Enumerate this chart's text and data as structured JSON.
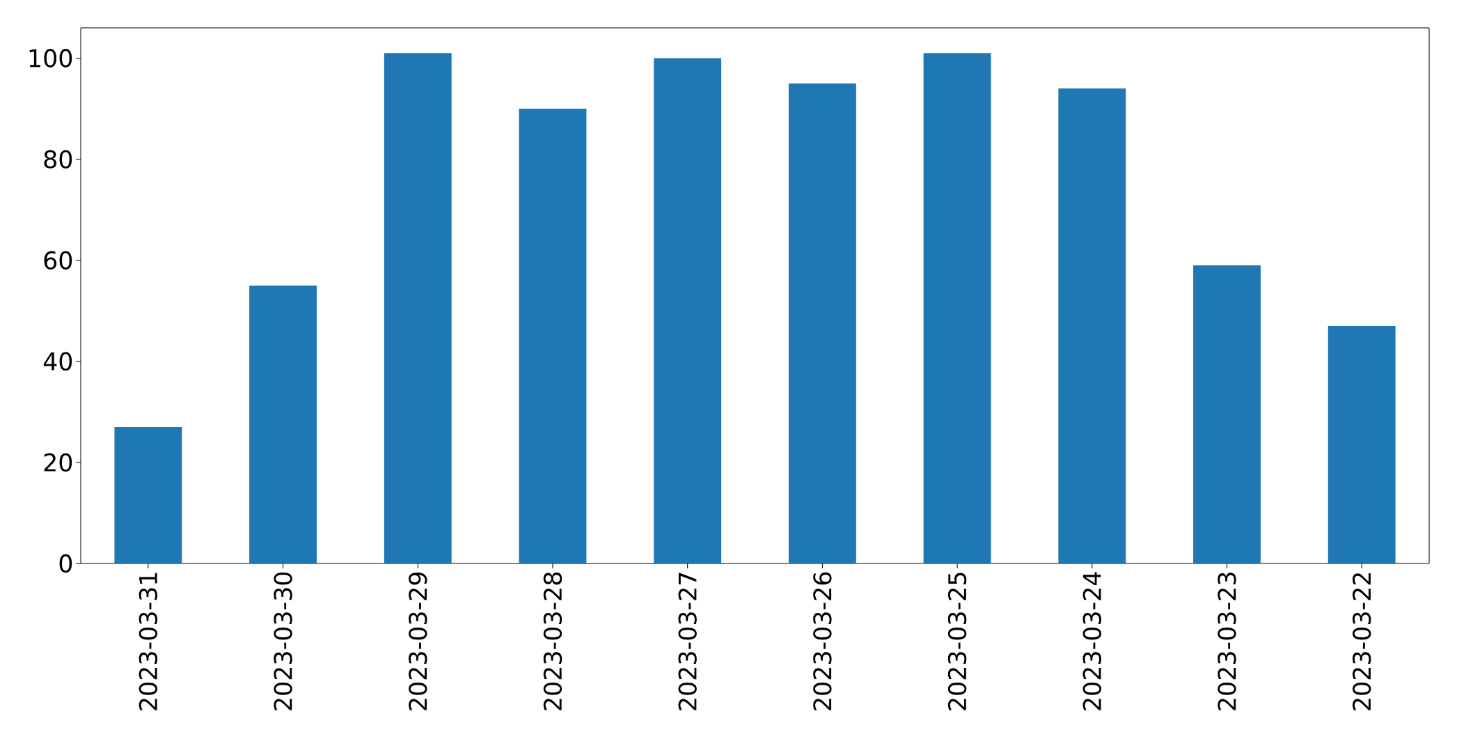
{
  "chart_data": {
    "type": "bar",
    "categories": [
      "2023-03-31",
      "2023-03-30",
      "2023-03-29",
      "2023-03-28",
      "2023-03-27",
      "2023-03-26",
      "2023-03-25",
      "2023-03-24",
      "2023-03-23",
      "2023-03-22"
    ],
    "values": [
      27,
      55,
      101,
      90,
      100,
      95,
      101,
      94,
      59,
      47
    ],
    "color": "#1f77b4",
    "ylim": [
      0,
      106
    ],
    "yticks": [
      0,
      20,
      40,
      60,
      80,
      100
    ]
  }
}
